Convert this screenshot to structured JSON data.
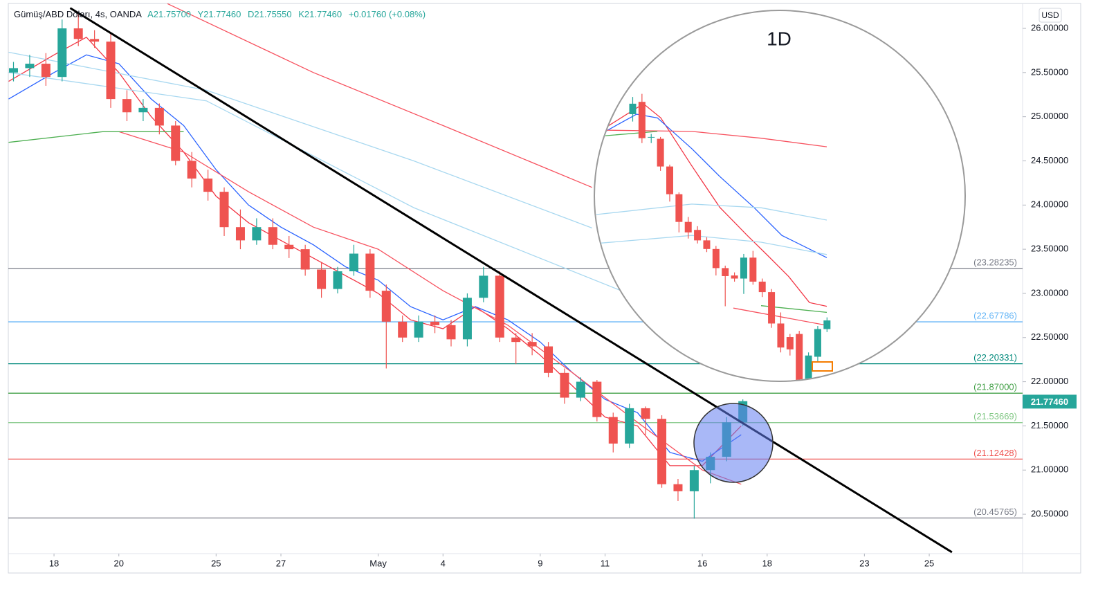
{
  "chart_data": [
    {
      "type": "candlestick",
      "title": "Gümüş/ABD Doları, 4s, OANDA",
      "quotes": [
        "A21.75700",
        "Y21.77460",
        "D21.75550",
        "K21.77460",
        "+0.01760 (+0.08%)"
      ],
      "currency": "USD",
      "up_color": "#26a69a",
      "down_color": "#ef5350",
      "xlim": [
        -1.41,
        29.88
      ],
      "xticks": [
        {
          "value": 0,
          "label": "18"
        },
        {
          "value": 2,
          "label": "20"
        },
        {
          "value": 5,
          "label": "25"
        },
        {
          "value": 7,
          "label": "27"
        },
        {
          "value": 10,
          "label": "May"
        },
        {
          "value": 12,
          "label": "4"
        },
        {
          "value": 15,
          "label": "9"
        },
        {
          "value": 17,
          "label": "11"
        },
        {
          "value": 20,
          "label": "16"
        },
        {
          "value": 22,
          "label": "18"
        },
        {
          "value": 25,
          "label": "23"
        },
        {
          "value": 27,
          "label": "25"
        }
      ],
      "ylim": [
        20.054,
        26.282
      ],
      "yticks": [
        {
          "value": 20.5,
          "label": "20.50000"
        },
        {
          "value": 21,
          "label": "21.00000"
        },
        {
          "value": 21.5,
          "label": "21.50000"
        },
        {
          "value": 22,
          "label": "22.00000"
        },
        {
          "value": 22.5,
          "label": "22.50000"
        },
        {
          "value": 23,
          "label": "23.00000"
        },
        {
          "value": 23.5,
          "label": "23.50000"
        },
        {
          "value": 24,
          "label": "24.00000"
        },
        {
          "value": 24.5,
          "label": "24.50000"
        },
        {
          "value": 25,
          "label": "25.00000"
        },
        {
          "value": 25.5,
          "label": "25.50000"
        },
        {
          "value": 26,
          "label": "26.00000"
        }
      ],
      "x": [
        -1.25,
        -0.75,
        -0.25,
        0.25,
        0.75,
        1.25,
        1.75,
        2.25,
        2.75,
        3.25,
        3.75,
        4.25,
        4.75,
        5.25,
        5.75,
        6.25,
        6.75,
        7.25,
        7.75,
        8.25,
        8.75,
        9.25,
        9.75,
        10.25,
        10.75,
        11.25,
        11.75,
        12.25,
        12.75,
        13.25,
        13.75,
        14.25,
        14.75,
        15.25,
        15.75,
        16.25,
        16.75,
        17.25,
        17.75,
        18.25,
        18.75,
        19.25,
        19.75,
        20.25,
        20.75,
        21.25
      ],
      "open": [
        25.5,
        25.55,
        25.6,
        25.45,
        26.0,
        25.88,
        25.85,
        25.2,
        25.05,
        25.1,
        24.9,
        24.5,
        24.3,
        24.15,
        23.75,
        23.6,
        23.75,
        23.55,
        23.5,
        23.27,
        23.05,
        23.25,
        23.45,
        23.03,
        22.68,
        22.5,
        22.68,
        22.64,
        22.48,
        22.95,
        23.2,
        22.5,
        22.45,
        22.4,
        22.1,
        21.82,
        22.0,
        21.6,
        21.3,
        21.7,
        21.58,
        20.84,
        20.76,
        21.0,
        21.15,
        21.54
      ],
      "high": [
        25.62,
        25.7,
        25.72,
        26.1,
        26.18,
        25.98,
        25.95,
        25.3,
        25.2,
        25.15,
        24.95,
        24.6,
        24.4,
        24.2,
        23.95,
        23.85,
        23.85,
        23.65,
        23.55,
        23.35,
        23.3,
        23.55,
        23.5,
        23.1,
        22.75,
        22.75,
        22.75,
        22.7,
        23.0,
        23.3,
        23.25,
        22.55,
        22.55,
        22.45,
        22.15,
        22.05,
        22.02,
        21.65,
        21.75,
        21.72,
        21.62,
        20.9,
        21.05,
        21.2,
        21.6,
        21.8
      ],
      "low": [
        25.4,
        25.45,
        25.35,
        25.4,
        25.8,
        25.78,
        25.1,
        24.95,
        24.95,
        24.8,
        24.45,
        24.2,
        24.05,
        23.65,
        23.5,
        23.55,
        23.5,
        23.4,
        23.2,
        22.95,
        23.0,
        23.2,
        22.95,
        22.15,
        22.45,
        22.45,
        22.55,
        22.4,
        22.4,
        22.9,
        22.45,
        22.2,
        22.3,
        22.05,
        21.75,
        21.78,
        21.55,
        21.2,
        21.25,
        21.4,
        20.8,
        20.65,
        20.45,
        20.85,
        21.1,
        21.5
      ],
      "close": [
        25.55,
        25.6,
        25.45,
        26.0,
        25.88,
        25.85,
        25.2,
        25.05,
        25.1,
        24.9,
        24.5,
        24.3,
        24.15,
        23.75,
        23.6,
        23.75,
        23.55,
        23.5,
        23.27,
        23.05,
        23.25,
        23.45,
        23.03,
        22.68,
        22.5,
        22.68,
        22.64,
        22.48,
        22.95,
        23.2,
        22.5,
        22.45,
        22.4,
        22.1,
        21.82,
        22.0,
        21.6,
        21.3,
        21.7,
        21.58,
        20.84,
        20.76,
        21.0,
        21.15,
        21.54,
        21.78
      ],
      "series": [
        {
          "color": "#f23645",
          "x": [
            -1.4,
            0,
            1,
            2,
            3,
            4,
            5,
            6,
            7,
            8,
            9,
            10,
            11,
            12,
            13,
            14,
            15,
            16,
            17,
            18,
            19,
            20,
            21.2
          ],
          "values": [
            25.4,
            25.7,
            25.9,
            25.5,
            25.0,
            24.6,
            24.1,
            23.8,
            23.6,
            23.4,
            23.2,
            23.0,
            22.7,
            22.6,
            22.85,
            22.6,
            22.3,
            21.95,
            21.6,
            21.5,
            21.05,
            21.05,
            21.5
          ]
        },
        {
          "color": "#2962ff",
          "x": [
            -1.4,
            0,
            1,
            2,
            3,
            4,
            5,
            6,
            7,
            8,
            9,
            10,
            11,
            12,
            13,
            14,
            15,
            16,
            17,
            18,
            19,
            20,
            21.2
          ],
          "values": [
            25.2,
            25.5,
            25.7,
            25.6,
            25.2,
            24.9,
            24.4,
            24.0,
            23.75,
            23.55,
            23.3,
            23.15,
            22.85,
            22.7,
            22.85,
            22.7,
            22.45,
            22.1,
            21.8,
            21.65,
            21.2,
            21.1,
            21.4
          ]
        },
        {
          "color": "#f7525f",
          "x": [
            2,
            4,
            6,
            8,
            10,
            12,
            14,
            16,
            18,
            20,
            21.2
          ],
          "values": [
            24.83,
            24.6,
            24.15,
            23.75,
            23.5,
            23.03,
            22.64,
            22.1,
            21.54,
            21.0,
            20.84
          ]
        },
        {
          "color": "#f7525f",
          "x": [
            3.5,
            8,
            12,
            16.6
          ],
          "values": [
            26.28,
            25.5,
            24.9,
            24.2
          ]
        },
        {
          "color": "#a8d8f0",
          "x": [
            -1.4,
            4.7,
            11.1,
            16.6
          ],
          "values": [
            25.73,
            25.3,
            24.5,
            23.74
          ]
        },
        {
          "color": "#a8d8f0",
          "x": [
            -1.4,
            4.7,
            11.1,
            17.5,
            19.6
          ],
          "values": [
            25.5,
            25.18,
            23.97,
            23.03,
            22.64
          ]
        },
        {
          "color": "#4caf50",
          "x": [
            -1.4,
            1.5,
            4
          ],
          "values": [
            24.71,
            24.83,
            24.83
          ]
        }
      ],
      "levels": [
        {
          "value": 23.28235,
          "label": "(23.28235)",
          "color": "#787b86"
        },
        {
          "value": 22.67786,
          "label": "(22.67786)",
          "color": "#64b5f6"
        },
        {
          "value": 22.20331,
          "label": "(22.20331)",
          "color": "#00897b"
        },
        {
          "value": 21.87,
          "label": "(21.87000)",
          "color": "#43a047"
        },
        {
          "value": 21.53669,
          "label": "(21.53669)",
          "color": "#81c784"
        },
        {
          "value": 21.12428,
          "label": "(21.12428)",
          "color": "#ef5350"
        },
        {
          "value": 20.45765,
          "label": "(20.45765)",
          "color": "#787b86"
        }
      ],
      "last_price": {
        "value": 21.7746,
        "label": "21.77460"
      },
      "trendline": {
        "x": [
          0.5,
          27.7
        ],
        "values": [
          26.23,
          20.07
        ],
        "color": "#000000"
      }
    },
    {
      "type": "candlestick",
      "title": "1D",
      "up_color": "#26a69a",
      "down_color": "#ef5350",
      "xlim": [
        -4,
        21.5
      ],
      "ylim": [
        21.4,
        27.2
      ],
      "x": [
        0,
        1,
        2,
        3,
        4,
        5,
        6,
        7,
        8,
        9,
        10,
        11,
        12,
        13,
        14,
        15,
        16,
        17,
        18,
        19,
        20,
        21
      ],
      "open": [
        26.02,
        26.22,
        25.64,
        25.62,
        25.17,
        24.72,
        24.27,
        24.14,
        23.97,
        23.83,
        23.52,
        23.4,
        23.35,
        23.69,
        23.3,
        23.13,
        22.62,
        22.4,
        22.45,
        21.7,
        22.08,
        22.53
      ],
      "high": [
        26.3,
        26.35,
        25.7,
        25.65,
        25.2,
        24.75,
        24.35,
        24.2,
        24.02,
        23.88,
        23.56,
        23.45,
        23.75,
        23.8,
        23.35,
        23.18,
        22.8,
        22.45,
        22.5,
        22.15,
        22.58,
        22.72
      ],
      "low": [
        25.9,
        25.55,
        25.55,
        25.1,
        24.6,
        24.1,
        24.0,
        23.92,
        23.78,
        23.4,
        22.9,
        23.3,
        23.1,
        23.25,
        23.05,
        22.55,
        22.15,
        22.1,
        21.65,
        21.55,
        22.0,
        22.48
      ],
      "close": [
        26.19,
        25.63,
        25.65,
        25.17,
        24.72,
        24.27,
        24.1,
        23.97,
        23.83,
        23.52,
        23.39,
        23.35,
        23.69,
        23.3,
        23.13,
        22.62,
        22.23,
        22.2,
        21.7,
        22.1,
        22.53,
        22.67
      ],
      "series": [
        {
          "color": "#f23645",
          "x": [
            -2.95,
            1.16,
            3.03,
            6.39,
            9.39,
            12.38,
            14.62,
            16.87,
            19.1,
            20.98
          ],
          "values": [
            25.8,
            26.19,
            25.96,
            25.18,
            24.51,
            24.05,
            23.72,
            23.38,
            22.96,
            22.9
          ]
        },
        {
          "color": "#2962ff",
          "x": [
            -2.95,
            0.41,
            2.66,
            6.39,
            9.39,
            13.13,
            16.12,
            20.98
          ],
          "values": [
            25.74,
            26.02,
            25.96,
            25.46,
            25.01,
            24.5,
            24.05,
            23.69
          ]
        },
        {
          "color": "#f7525f",
          "x": [
            -2.95,
            6.39,
            13.87,
            20.98
          ],
          "values": [
            25.76,
            25.74,
            25.63,
            25.49
          ]
        },
        {
          "color": "#a8d8f0",
          "x": [
            -3.93,
            6.39,
            13.87,
            20.98
          ],
          "values": [
            24.39,
            24.56,
            24.5,
            24.3
          ]
        },
        {
          "color": "#a8d8f0",
          "x": [
            -3.93,
            6.39,
            13.87,
            20.98
          ],
          "values": [
            23.92,
            24.05,
            23.94,
            23.74
          ]
        },
        {
          "color": "#4caf50",
          "x": [
            -2.95,
            2.66,
            6.39,
            13.87,
            20.98
          ],
          "values": [
            25.67,
            25.74,
            null,
            22.91,
            22.8
          ]
        },
        {
          "color": "#f7525f",
          "x": [
            10.88,
            20.98
          ],
          "values": [
            22.87,
            22.59
          ]
        }
      ]
    }
  ]
}
